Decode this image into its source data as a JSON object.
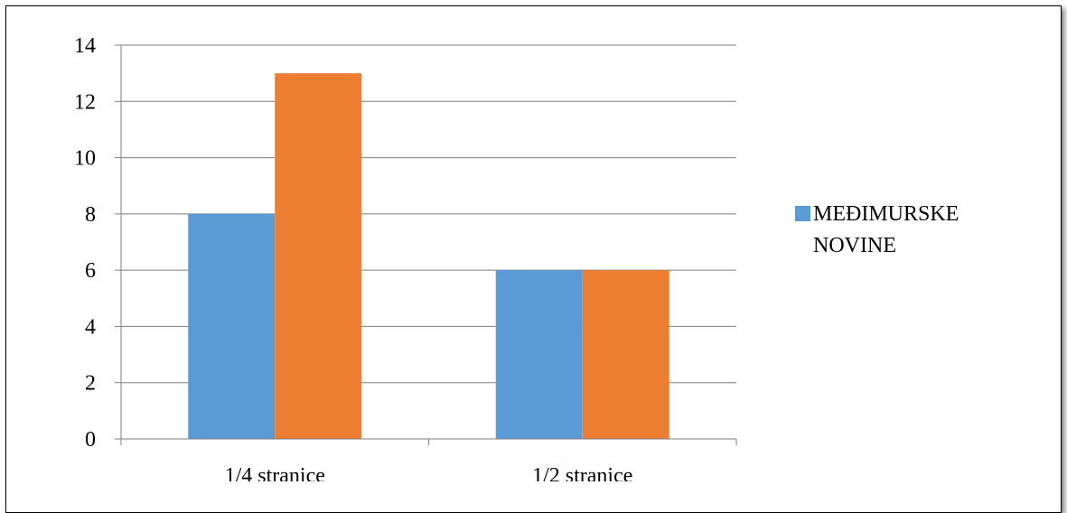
{
  "chart_data": {
    "type": "bar",
    "categories": [
      "1/4 stranice",
      "1/2 stranice"
    ],
    "series": [
      {
        "name": "MEĐIMURSKE NOVINE",
        "values": [
          8,
          6
        ],
        "color": "#5b9bd5"
      },
      {
        "name": "",
        "values": [
          13,
          6
        ],
        "color": "#ed7d31"
      }
    ],
    "ylim": [
      0,
      14
    ],
    "yticks": [
      0,
      2,
      4,
      6,
      8,
      10,
      12,
      14
    ],
    "grid": true,
    "legend_position": "right",
    "title": "",
    "xlabel": "",
    "ylabel": ""
  }
}
